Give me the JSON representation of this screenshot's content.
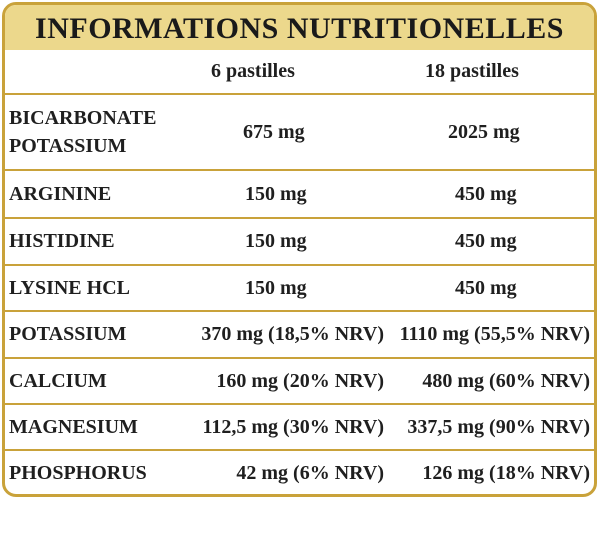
{
  "title": "INFORMATIONS NUTRITIONELLES",
  "columns": [
    "6 pastilles",
    "18 pastilles"
  ],
  "rows": [
    {
      "name_line1": "BICARBONATE",
      "name_line2": "POTASSIUM",
      "v1": "675 mg",
      "v2": "2025 mg"
    },
    {
      "name": "ARGININE",
      "v1": "150 mg",
      "v2": "450 mg"
    },
    {
      "name": "HISTIDINE",
      "v1": "150 mg",
      "v2": "450 mg"
    },
    {
      "name": "LYSINE HCL",
      "v1": "150 mg",
      "v2": "450 mg"
    },
    {
      "name": "POTASSIUM",
      "v1": "370 mg (18,5% NRV)",
      "v2": "1110 mg (55,5% NRV)"
    },
    {
      "name": "CALCIUM",
      "v1": "160 mg (20% NRV)",
      "v2": "480 mg (60% NRV)"
    },
    {
      "name": "MAGNESIUM",
      "v1": "112,5 mg (30% NRV)",
      "v2": "337,5 mg (90% NRV)"
    },
    {
      "name": "PHOSPHORUS",
      "v1": "42 mg (6% NRV)",
      "v2": "126 mg (18% NRV)"
    }
  ]
}
